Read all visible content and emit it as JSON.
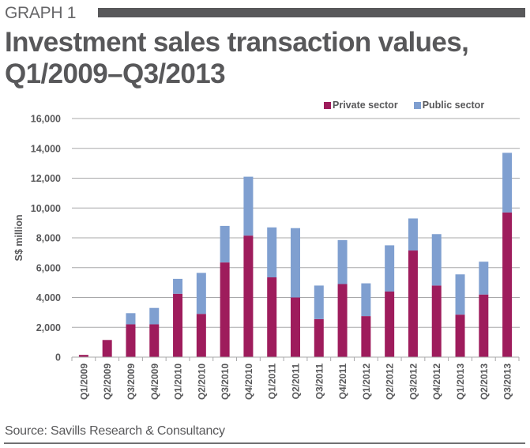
{
  "header": {
    "graph_label": "GRAPH 1",
    "title_line1": "Investment sales transaction values,",
    "title_line2": "Q1/2009–Q3/2013"
  },
  "legend": {
    "items": [
      {
        "label": "Private sector",
        "color": "#9e1c5c"
      },
      {
        "label": "Public sector",
        "color": "#7f9fd0"
      }
    ]
  },
  "footer": {
    "source": "Source: Savills Research & Consultancy"
  },
  "chart_data": {
    "type": "bar",
    "stacked": true,
    "title": "Investment sales transaction values, Q1/2009–Q3/2013",
    "xlabel": "",
    "ylabel": "S$ million",
    "ylim": [
      0,
      16000
    ],
    "yticks": [
      0,
      2000,
      4000,
      6000,
      8000,
      10000,
      12000,
      14000,
      16000
    ],
    "ytick_labels": [
      "0",
      "2,000",
      "4,000",
      "6,000",
      "8,000",
      "10,000",
      "12,000",
      "14,000",
      "16,000"
    ],
    "grid": true,
    "legend_position": "top-right",
    "categories": [
      "Q1/2009",
      "Q2/2009",
      "Q3/2009",
      "Q4/2009",
      "Q1/2010",
      "Q2/2010",
      "Q3/2010",
      "Q4/2010",
      "Q1/2011",
      "Q2/2011",
      "Q3/2011",
      "Q4/2011",
      "Q1/2012",
      "Q2/2012",
      "Q3/2012",
      "Q4/2012",
      "Q1/2013",
      "Q2/2013",
      "Q3/2013"
    ],
    "series": [
      {
        "name": "Private sector",
        "color": "#9e1c5c",
        "values": [
          150,
          1150,
          2200,
          2200,
          4250,
          2900,
          6350,
          8150,
          5350,
          4000,
          2550,
          4900,
          2750,
          4400,
          7150,
          4800,
          2850,
          4200,
          9700
        ]
      },
      {
        "name": "Public sector",
        "color": "#7f9fd0",
        "values": [
          0,
          0,
          750,
          1100,
          1000,
          2750,
          2450,
          3950,
          3350,
          4650,
          2250,
          2950,
          2200,
          3100,
          2150,
          3450,
          2700,
          2200,
          4000
        ]
      }
    ],
    "source": "Source: Savills Research & Consultancy"
  }
}
